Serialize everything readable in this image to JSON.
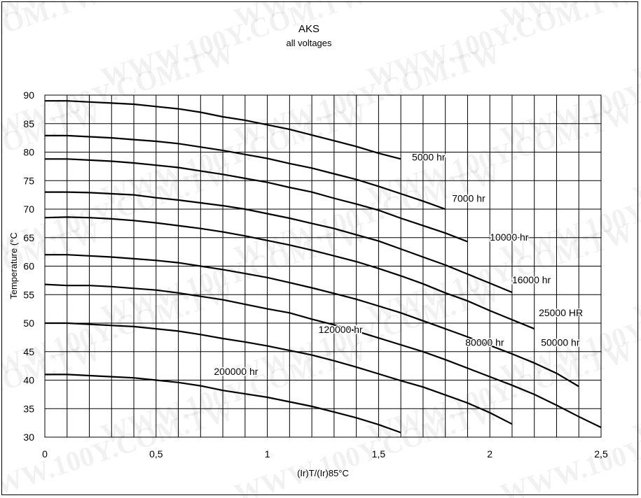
{
  "watermark": "WWW.100Y.COM.TW",
  "chart_data": {
    "type": "line",
    "title": "AKS",
    "subtitle": "all voltages",
    "xlabel": "(Ir)T/(Ir)85°C",
    "ylabel": "Temperature (°C",
    "xlim": [
      0,
      2.5
    ],
    "ylim": [
      30,
      90
    ],
    "grid": true,
    "x_ticks": [
      0,
      0.5,
      1,
      1.5,
      2,
      2.5
    ],
    "x_tick_labels": [
      "0",
      "0,5",
      "1",
      "1,5",
      "2",
      "2,5"
    ],
    "y_ticks": [
      30,
      35,
      40,
      45,
      50,
      55,
      60,
      65,
      70,
      75,
      80,
      85,
      90
    ],
    "y_tick_labels": [
      "30",
      "35",
      "40",
      "45",
      "50",
      "55",
      "60",
      "65",
      "70",
      "75",
      "80",
      "85",
      "90"
    ],
    "series": [
      {
        "name": "5000 hr",
        "label_at": [
          1.65,
          78.5
        ],
        "points": [
          [
            0,
            89
          ],
          [
            0.1,
            89
          ],
          [
            0.2,
            88.8
          ],
          [
            0.3,
            88.6
          ],
          [
            0.4,
            88.4
          ],
          [
            0.5,
            88
          ],
          [
            0.6,
            87.6
          ],
          [
            0.7,
            87
          ],
          [
            0.8,
            86.2
          ],
          [
            0.9,
            85.6
          ],
          [
            1.0,
            84.8
          ],
          [
            1.1,
            84
          ],
          [
            1.2,
            83
          ],
          [
            1.3,
            82
          ],
          [
            1.4,
            81
          ],
          [
            1.5,
            79.8
          ],
          [
            1.6,
            78.8
          ]
        ]
      },
      {
        "name": "7000 hr",
        "label_at": [
          1.83,
          71.3
        ],
        "points": [
          [
            0,
            82.9
          ],
          [
            0.1,
            82.9
          ],
          [
            0.2,
            82.7
          ],
          [
            0.3,
            82.5
          ],
          [
            0.4,
            82.2
          ],
          [
            0.5,
            81.9
          ],
          [
            0.6,
            81.5
          ],
          [
            0.7,
            80.9
          ],
          [
            0.8,
            80.3
          ],
          [
            0.9,
            79.6
          ],
          [
            1.0,
            78.9
          ],
          [
            1.1,
            78
          ],
          [
            1.2,
            77.2
          ],
          [
            1.3,
            76.2
          ],
          [
            1.4,
            75.2
          ],
          [
            1.5,
            74
          ],
          [
            1.6,
            72.7
          ],
          [
            1.7,
            71.4
          ],
          [
            1.8,
            70
          ]
        ]
      },
      {
        "name": "10000 hr",
        "label_at": [
          2.0,
          64.5
        ],
        "points": [
          [
            0,
            78.8
          ],
          [
            0.1,
            78.8
          ],
          [
            0.2,
            78.6
          ],
          [
            0.3,
            78.4
          ],
          [
            0.4,
            78.1
          ],
          [
            0.5,
            77.7
          ],
          [
            0.6,
            77.3
          ],
          [
            0.7,
            76.7
          ],
          [
            0.8,
            76.1
          ],
          [
            0.9,
            75.4
          ],
          [
            1.0,
            74.7
          ],
          [
            1.1,
            73.8
          ],
          [
            1.2,
            73
          ],
          [
            1.3,
            71.9
          ],
          [
            1.4,
            70.9
          ],
          [
            1.5,
            69.8
          ],
          [
            1.6,
            68.4
          ],
          [
            1.7,
            67.1
          ],
          [
            1.8,
            65.8
          ],
          [
            1.9,
            64.3
          ]
        ]
      },
      {
        "name": "16000 hr",
        "label_at": [
          2.1,
          57.0
        ],
        "points": [
          [
            0,
            73
          ],
          [
            0.1,
            73
          ],
          [
            0.2,
            72.9
          ],
          [
            0.3,
            72.7
          ],
          [
            0.4,
            72.5
          ],
          [
            0.5,
            72
          ],
          [
            0.6,
            71.6
          ],
          [
            0.7,
            71.1
          ],
          [
            0.8,
            70.6
          ],
          [
            0.9,
            70
          ],
          [
            1.0,
            69.2
          ],
          [
            1.1,
            68.4
          ],
          [
            1.2,
            67.5
          ],
          [
            1.3,
            66.6
          ],
          [
            1.4,
            65.5
          ],
          [
            1.5,
            64.4
          ],
          [
            1.6,
            63
          ],
          [
            1.7,
            61.6
          ],
          [
            1.8,
            60.2
          ],
          [
            1.9,
            58.6
          ],
          [
            2.0,
            57
          ],
          [
            2.1,
            55.4
          ]
        ]
      },
      {
        "name": "25000 HR",
        "label_at": [
          2.22,
          51.2
        ],
        "points": [
          [
            0,
            68.5
          ],
          [
            0.1,
            68.6
          ],
          [
            0.2,
            68.5
          ],
          [
            0.3,
            68.3
          ],
          [
            0.4,
            68
          ],
          [
            0.5,
            67.6
          ],
          [
            0.6,
            67.1
          ],
          [
            0.7,
            66.6
          ],
          [
            0.8,
            66
          ],
          [
            0.9,
            65.3
          ],
          [
            1.0,
            64.5
          ],
          [
            1.1,
            63.7
          ],
          [
            1.2,
            62.8
          ],
          [
            1.3,
            61.8
          ],
          [
            1.4,
            60.8
          ],
          [
            1.5,
            59.6
          ],
          [
            1.6,
            58.3
          ],
          [
            1.7,
            56.9
          ],
          [
            1.8,
            55.3
          ],
          [
            1.9,
            53.9
          ],
          [
            2.0,
            52.2
          ],
          [
            2.1,
            50.6
          ],
          [
            2.2,
            49
          ]
        ]
      },
      {
        "name": "50000 hr",
        "label_at": [
          2.23,
          46.0
        ],
        "points": [
          [
            0,
            62
          ],
          [
            0.1,
            62
          ],
          [
            0.2,
            61.8
          ],
          [
            0.3,
            61.6
          ],
          [
            0.4,
            61.3
          ],
          [
            0.5,
            61
          ],
          [
            0.6,
            60.6
          ],
          [
            0.7,
            60
          ],
          [
            0.8,
            59.4
          ],
          [
            0.9,
            58.7
          ],
          [
            1.0,
            58
          ],
          [
            1.1,
            57.1
          ],
          [
            1.2,
            56.2
          ],
          [
            1.3,
            55.2
          ],
          [
            1.4,
            54.2
          ],
          [
            1.5,
            53
          ],
          [
            1.6,
            51.8
          ],
          [
            1.7,
            50.4
          ],
          [
            1.8,
            49
          ],
          [
            1.9,
            47.6
          ],
          [
            2.0,
            46.1
          ],
          [
            2.1,
            44.6
          ],
          [
            2.2,
            43
          ],
          [
            2.3,
            41.2
          ],
          [
            2.4,
            38.9
          ]
        ]
      },
      {
        "name": "80000 hr",
        "label_at": [
          1.89,
          46.0
        ],
        "points": [
          [
            0,
            56.8
          ],
          [
            0.1,
            56.6
          ],
          [
            0.2,
            56.6
          ],
          [
            0.3,
            56.4
          ],
          [
            0.4,
            56.1
          ],
          [
            0.5,
            55.8
          ],
          [
            0.6,
            55.3
          ],
          [
            0.7,
            54.7
          ],
          [
            0.8,
            54.1
          ],
          [
            0.9,
            53.3
          ],
          [
            1.0,
            52.5
          ],
          [
            1.1,
            51.8
          ],
          [
            1.2,
            50.7
          ],
          [
            1.3,
            49.7
          ],
          [
            1.4,
            48.6
          ],
          [
            1.5,
            47.4
          ],
          [
            1.6,
            46.2
          ],
          [
            1.7,
            45
          ],
          [
            1.8,
            43.6
          ],
          [
            1.9,
            42.1
          ],
          [
            2.0,
            40.6
          ],
          [
            2.1,
            39.1
          ],
          [
            2.2,
            37.5
          ],
          [
            2.3,
            35.6
          ],
          [
            2.4,
            33.6
          ],
          [
            2.5,
            31.7
          ]
        ]
      },
      {
        "name": "120000 hr",
        "label_at": [
          1.23,
          48.3
        ],
        "points": [
          [
            0,
            50
          ],
          [
            0.1,
            50
          ],
          [
            0.2,
            49.8
          ],
          [
            0.3,
            49.6
          ],
          [
            0.4,
            49.4
          ],
          [
            0.5,
            49
          ],
          [
            0.6,
            48.6
          ],
          [
            0.7,
            48
          ],
          [
            0.8,
            47.3
          ],
          [
            0.9,
            46.7
          ],
          [
            1.0,
            46
          ],
          [
            1.1,
            45.2
          ],
          [
            1.2,
            44.4
          ],
          [
            1.3,
            43.4
          ],
          [
            1.4,
            42.3
          ],
          [
            1.5,
            41.1
          ],
          [
            1.6,
            39.9
          ],
          [
            1.7,
            38.8
          ],
          [
            1.8,
            37.4
          ],
          [
            1.9,
            36
          ],
          [
            2.0,
            34.3
          ],
          [
            2.1,
            32.3
          ]
        ]
      },
      {
        "name": "200000 hr",
        "label_at": [
          0.76,
          40.9
        ],
        "points": [
          [
            0,
            41
          ],
          [
            0.1,
            41
          ],
          [
            0.2,
            40.8
          ],
          [
            0.3,
            40.6
          ],
          [
            0.4,
            40.4
          ],
          [
            0.5,
            40
          ],
          [
            0.6,
            39.6
          ],
          [
            0.7,
            39
          ],
          [
            0.8,
            38.2
          ],
          [
            0.9,
            37.6
          ],
          [
            1.0,
            37
          ],
          [
            1.1,
            36.2
          ],
          [
            1.2,
            35.4
          ],
          [
            1.3,
            34.4
          ],
          [
            1.4,
            33.4
          ],
          [
            1.5,
            32.2
          ],
          [
            1.6,
            30.8
          ]
        ]
      }
    ]
  }
}
